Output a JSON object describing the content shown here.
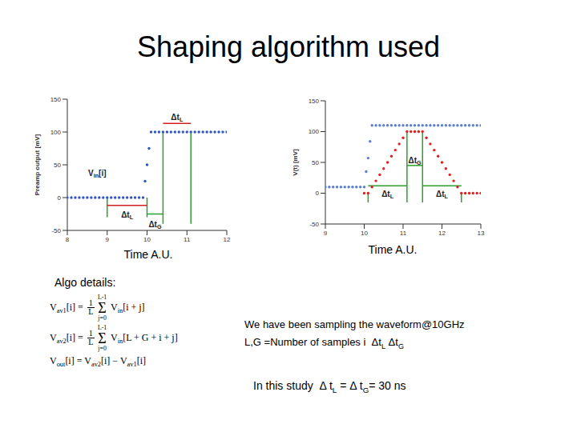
{
  "title": "Shaping algorithm used",
  "chart_data": [
    {
      "type": "scatter",
      "ylabel": "Preamp output [mV]",
      "xlabel": "Time A.U.",
      "xlim": [
        8,
        12
      ],
      "xticks": [
        8,
        9,
        10,
        11,
        12
      ],
      "ylim": [
        -50,
        150
      ],
      "yticks": [
        -50,
        0,
        50,
        100,
        150
      ],
      "series": [
        {
          "color": "#2f55c8",
          "marker": "circle",
          "x": [
            8,
            8.1,
            8.2,
            8.3,
            8.4,
            8.5,
            8.6,
            8.7,
            8.8,
            8.9,
            9,
            9.1,
            9.2,
            9.3,
            9.4,
            9.5,
            9.6,
            9.7,
            9.8,
            9.9,
            9.95,
            10,
            10.05,
            10.1,
            10.2,
            10.3,
            10.4,
            10.5,
            10.6,
            10.7,
            10.8,
            10.9,
            11,
            11.1,
            11.2,
            11.3,
            11.4,
            11.5,
            11.6,
            11.7,
            11.8,
            11.9,
            12
          ],
          "values": [
            0,
            0,
            0,
            0,
            0,
            0,
            0,
            0,
            0,
            0,
            0,
            0,
            0,
            0,
            0,
            0,
            0,
            0,
            0,
            0,
            25,
            50,
            75,
            100,
            100,
            100,
            100,
            100,
            100,
            100,
            100,
            100,
            100,
            100,
            100,
            100,
            100,
            100,
            100,
            100,
            100,
            100,
            100
          ]
        }
      ],
      "lines": [
        {
          "x": 9,
          "y": [
            -30,
            0
          ],
          "color": "#2e9e2e"
        },
        {
          "x": 10,
          "y": [
            -30,
            0
          ],
          "color": "#2e9e2e"
        },
        {
          "x": 10.4,
          "y": [
            -40,
            100
          ],
          "color": "#2e9e2e"
        },
        {
          "x": 11.1,
          "y": [
            -40,
            100
          ],
          "color": "#2e9e2e"
        }
      ],
      "spans": [
        {
          "label": [
            {
              "t": "Δt"
            },
            {
              "sub": "L"
            }
          ],
          "from": 9,
          "to": 10,
          "y": -12,
          "label_y": -27,
          "color": "#d42020"
        },
        {
          "label": [
            {
              "t": "Δt"
            },
            {
              "sub": "G"
            }
          ],
          "from": 10,
          "to": 10.4,
          "y": -25,
          "label_y": -42,
          "color": "#2e9e2e"
        },
        {
          "label": [
            {
              "t": "Δt"
            },
            {
              "sub": "L"
            }
          ],
          "from": 10.4,
          "to": 11.1,
          "y": 113,
          "label_y": 122,
          "color": "#d42020"
        }
      ],
      "annotations": [
        {
          "text": [
            {
              "t": "V"
            },
            {
              "sub": "in"
            },
            {
              "t": "[i]"
            }
          ],
          "x": 8.75,
          "y": 36,
          "color": "#1a1a3a"
        }
      ]
    },
    {
      "type": "scatter",
      "ylabel": "V(t) [mV]",
      "xlabel": "Time A.U.",
      "xlim": [
        9,
        13
      ],
      "xticks": [
        9,
        10,
        11,
        12,
        13
      ],
      "ylim": [
        -50,
        150
      ],
      "yticks": [
        -50,
        0,
        50,
        100,
        150
      ],
      "series": [
        {
          "color": "#5b7fd0",
          "marker": "circle",
          "x": [
            9,
            9.1,
            9.2,
            9.3,
            9.4,
            9.5,
            9.6,
            9.7,
            9.8,
            9.9,
            10,
            10.05,
            10.1,
            10.15,
            10.2,
            10.3,
            10.4,
            10.5,
            10.6,
            10.7,
            10.8,
            10.9,
            11,
            11.1,
            11.2,
            11.3,
            11.4,
            11.5,
            11.6,
            11.7,
            11.8,
            11.9,
            12,
            12.1,
            12.2,
            12.3,
            12.4,
            12.5,
            12.6,
            12.7,
            12.8,
            12.9,
            13
          ],
          "values": [
            10,
            10,
            10,
            10,
            10,
            10,
            10,
            10,
            10,
            10,
            10,
            35,
            57,
            84,
            110,
            110,
            110,
            110,
            110,
            110,
            110,
            110,
            110,
            110,
            110,
            110,
            110,
            110,
            110,
            110,
            110,
            110,
            110,
            110,
            110,
            110,
            110,
            110,
            110,
            110,
            110,
            110,
            110
          ]
        },
        {
          "color": "#e02020",
          "marker": "circle",
          "x": [
            10,
            10.1,
            10.2,
            10.3,
            10.4,
            10.5,
            10.6,
            10.7,
            10.8,
            10.9,
            11,
            11.1,
            11.2,
            11.3,
            11.4,
            11.5,
            11.6,
            11.7,
            11.8,
            11.9,
            12,
            12.1,
            12.2,
            12.3,
            12.4,
            12.5,
            12.6,
            12.7,
            12.8,
            12.9,
            13
          ],
          "values": [
            0,
            0,
            10,
            20,
            30,
            40,
            50,
            60,
            70,
            80,
            90,
            100,
            100,
            100,
            100,
            100,
            90,
            80,
            70,
            60,
            50,
            40,
            30,
            20,
            10,
            0,
            0,
            0,
            0,
            0,
            0
          ]
        }
      ],
      "lines": [
        {
          "x": 10.1,
          "y": [
            -15,
            0
          ],
          "color": "#2e9e2e"
        },
        {
          "x": 11.1,
          "y": [
            -15,
            100
          ],
          "color": "#2e9e2e"
        },
        {
          "x": 11.5,
          "y": [
            -15,
            100
          ],
          "color": "#2e9e2e"
        },
        {
          "x": 12.5,
          "y": [
            -15,
            0
          ],
          "color": "#2e9e2e"
        }
      ],
      "spans": [
        {
          "label": [
            {
              "t": "Δt"
            },
            {
              "sub": "L"
            }
          ],
          "from": 10.1,
          "to": 11.1,
          "y": 12,
          "label_y": -2,
          "color": "#2e9e2e"
        },
        {
          "label": [
            {
              "t": "Δt"
            },
            {
              "sub": "G"
            }
          ],
          "from": 11.1,
          "to": 11.5,
          "y": 45,
          "label_y": 53,
          "color": "#2e9e2e"
        },
        {
          "label": [
            {
              "t": "Δt"
            },
            {
              "sub": "L"
            }
          ],
          "from": 11.5,
          "to": 12.5,
          "y": 12,
          "label_y": -2,
          "color": "#2e9e2e"
        }
      ],
      "annotations": []
    }
  ],
  "algo": {
    "heading": "Algo details:",
    "formulas": [
      [
        {
          "t": "V"
        },
        {
          "sub": "av1"
        },
        {
          "t": "[i] = "
        },
        {
          "frac": [
            "1",
            "L"
          ]
        },
        {
          "op": "Σ",
          "below": "j=0",
          "above": "L-1"
        },
        {
          "t": " V"
        },
        {
          "sub": "in"
        },
        {
          "t": "[i + j]"
        }
      ],
      [
        {
          "t": "V"
        },
        {
          "sub": "av2"
        },
        {
          "t": "[i] = "
        },
        {
          "frac": [
            "1",
            "L"
          ]
        },
        {
          "op": "Σ",
          "below": "j=0",
          "above": "L-1"
        },
        {
          "t": " V"
        },
        {
          "sub": "in"
        },
        {
          "t": "[L + G + i + j]"
        }
      ],
      [
        {
          "t": "V"
        },
        {
          "sub": "out"
        },
        {
          "t": "[i] = V"
        },
        {
          "sub": "av2"
        },
        {
          "t": "[i] − V"
        },
        {
          "sub": "av1"
        },
        {
          "t": "[i]"
        }
      ]
    ]
  },
  "notes": [
    [
      {
        "t": "We have been sampling the waveform@10GHz"
      }
    ],
    [
      {
        "t": "L,G =Number of samples i  Δt"
      },
      {
        "sub": "L"
      },
      {
        "t": " Δt"
      },
      {
        "sub": "G"
      }
    ],
    [
      {
        "t": "In this study  Δ t"
      },
      {
        "sub": "L"
      },
      {
        "t": " = Δ t"
      },
      {
        "sub": "G"
      },
      {
        "t": "= 30 ns"
      }
    ]
  ]
}
